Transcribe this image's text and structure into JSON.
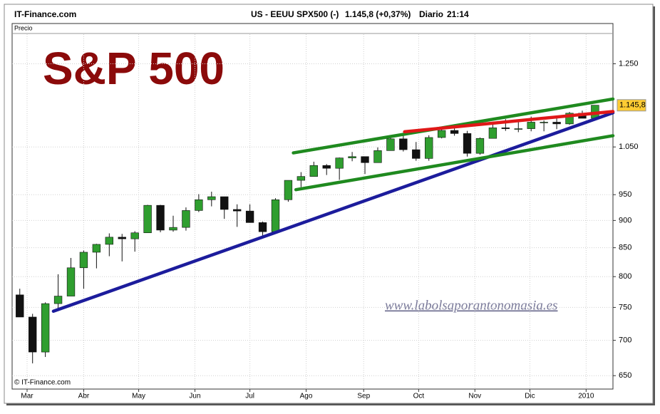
{
  "header": {
    "site": "IT-Finance.com",
    "instrument": "US - EEUU SPX500 (-)",
    "quote": "1.145,8 (+0,37%)",
    "period": "Diario",
    "time": "21:14"
  },
  "chart_data": {
    "type": "candlestick",
    "title": "S&P 500",
    "panel_label": "Precio",
    "watermark": "www.labolsaporantonomasia.es",
    "copyright": "© IT-Finance.com",
    "x": [
      0,
      1,
      2,
      3,
      4,
      5,
      6,
      7,
      8,
      9,
      10,
      11,
      12,
      13,
      14,
      15,
      16,
      17,
      18,
      19,
      20,
      21,
      22,
      23,
      24,
      25,
      26,
      27,
      28,
      29,
      30,
      31,
      32,
      33,
      34,
      35,
      36,
      37,
      38,
      39,
      40,
      41,
      42,
      43,
      44,
      45
    ],
    "open": [
      770,
      735,
      683,
      756,
      768,
      815,
      842,
      856,
      869,
      866,
      877,
      929,
      882,
      887,
      919,
      940,
      946,
      921,
      918,
      896,
      879,
      940,
      979,
      987,
      1010,
      1004,
      1026,
      1029,
      1016,
      1042,
      1068,
      1044,
      1025,
      1071,
      1087,
      1080,
      1036,
      1069,
      1093,
      1091,
      1091,
      1106,
      1106,
      1102,
      1127,
      1115
    ],
    "high": [
      780,
      740,
      758,
      804,
      832,
      845,
      857,
      876,
      875,
      880,
      930,
      930,
      909,
      925,
      951,
      956,
      946,
      931,
      931,
      898,
      943,
      979,
      996,
      1018,
      1013,
      1027,
      1039,
      1029,
      1049,
      1074,
      1080,
      1061,
      1076,
      1096,
      1101,
      1086,
      1071,
      1101,
      1113,
      1112,
      1119,
      1110,
      1117,
      1130,
      1133,
      1146
    ],
    "low": [
      735,
      667,
      676,
      745,
      768,
      780,
      814,
      835,
      826,
      843,
      877,
      878,
      879,
      881,
      916,
      927,
      903,
      888,
      896,
      869,
      875,
      936,
      965,
      987,
      990,
      980,
      1019,
      992,
      1016,
      1042,
      1040,
      1020,
      1020,
      1069,
      1075,
      1029,
      1033,
      1069,
      1086,
      1083,
      1085,
      1085,
      1090,
      1100,
      1115,
      1115
    ],
    "close": [
      735,
      683,
      756,
      768,
      815,
      842,
      856,
      869,
      866,
      877,
      929,
      882,
      887,
      919,
      940,
      946,
      921,
      918,
      896,
      879,
      940,
      979,
      987,
      1010,
      1004,
      1026,
      1029,
      1016,
      1042,
      1068,
      1044,
      1025,
      1071,
      1087,
      1080,
      1036,
      1069,
      1093,
      1091,
      1091,
      1106,
      1106,
      1102,
      1127,
      1115,
      1146
    ],
    "up_color": "#2f9e2f",
    "down_color": "#111111",
    "xlim": [
      -0.6,
      46.4
    ],
    "xticks": [
      {
        "value": 0.57,
        "label": "Mar"
      },
      {
        "value": 5,
        "label": "Abr"
      },
      {
        "value": 9.3,
        "label": "May"
      },
      {
        "value": 13.7,
        "label": "Jun"
      },
      {
        "value": 18,
        "label": "Jul"
      },
      {
        "value": 22.4,
        "label": "Ago"
      },
      {
        "value": 26.9,
        "label": "Sep"
      },
      {
        "value": 31.2,
        "label": "Oct"
      },
      {
        "value": 35.6,
        "label": "Nov"
      },
      {
        "value": 39.9,
        "label": "Dic"
      },
      {
        "value": 44.3,
        "label": "2010"
      }
    ],
    "ylim": [
      632,
      1330
    ],
    "log_y": true,
    "yticks": [
      650,
      700,
      750,
      800,
      850,
      900,
      950,
      {
        "value": 1050,
        "label": "1.050"
      },
      {
        "value": 1250,
        "label": "1.250"
      }
    ],
    "grid": true,
    "last_price": {
      "value": 1145.8,
      "label": "1.145,8"
    },
    "last_price_color": "#ffcc33",
    "trendlines": [
      {
        "color": "#1c1c9c",
        "x": [
          2.63,
          46.4
        ],
        "y": [
          744,
          1128
        ]
      },
      {
        "color": "#1f8a1f",
        "x": [
          21.4,
          46.4
        ],
        "y": [
          1037,
          1161
        ]
      },
      {
        "color": "#1f8a1f",
        "x": [
          21.6,
          46.4
        ],
        "y": [
          960,
          1075
        ]
      },
      {
        "color": "#e01818",
        "x": [
          30.1,
          46.4
        ],
        "y": [
          1084,
          1131
        ]
      }
    ]
  }
}
